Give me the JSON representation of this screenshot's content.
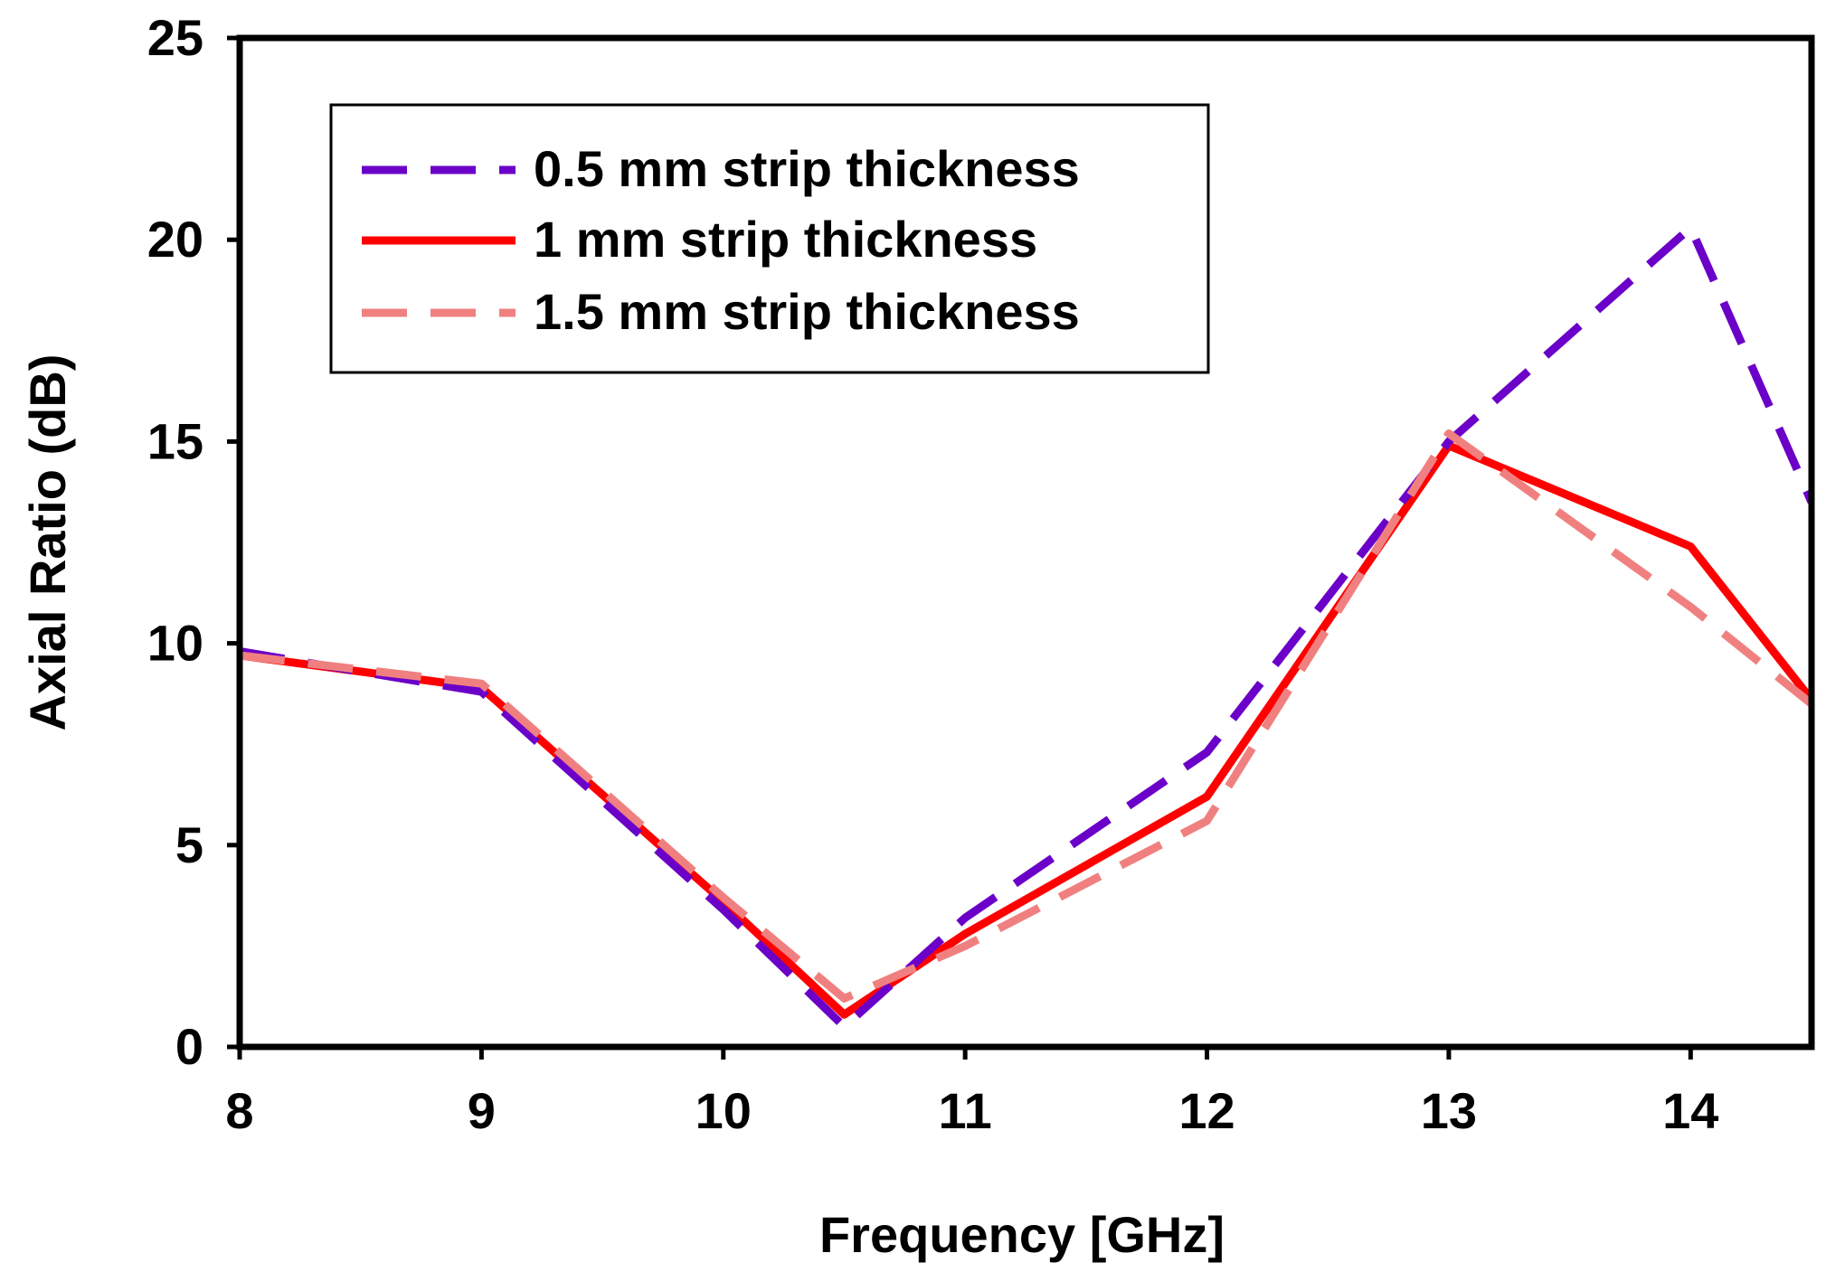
{
  "chart_data": {
    "type": "line",
    "title": "",
    "xlabel": "Frequency [GHz]",
    "ylabel": "Axial Ratio (dB)",
    "xlim": [
      8,
      14.5
    ],
    "ylim": [
      0,
      25
    ],
    "x_ticks": [
      "8",
      "9",
      "10",
      "11",
      "12",
      "13",
      "14"
    ],
    "y_ticks": [
      "0",
      "5",
      "10",
      "15",
      "20",
      "25"
    ],
    "grid": false,
    "legend_position": "top-left",
    "x": [
      8,
      9,
      10,
      10.5,
      11,
      12,
      13,
      14,
      14.5
    ],
    "series": [
      {
        "name": "0.5 mm strip thickness",
        "color": "#6b00c8",
        "style": "dashed",
        "values": [
          9.8,
          8.8,
          3.4,
          0.5,
          3.2,
          7.3,
          15.0,
          20.3,
          13.5
        ]
      },
      {
        "name": "1 mm strip thickness",
        "color": "#ff0000",
        "style": "solid",
        "values": [
          9.7,
          8.9,
          3.6,
          0.8,
          2.8,
          6.2,
          14.9,
          12.4,
          8.6
        ]
      },
      {
        "name": "1.5 mm strip thickness",
        "color": "#f08080",
        "style": "dashed",
        "values": [
          9.7,
          9.0,
          3.7,
          1.2,
          2.5,
          5.6,
          15.2,
          10.9,
          8.5
        ]
      }
    ]
  }
}
